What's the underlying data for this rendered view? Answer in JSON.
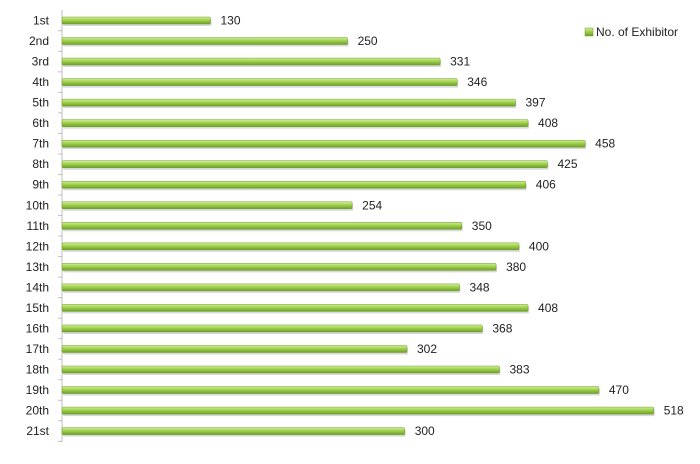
{
  "chart_data": {
    "type": "bar",
    "orientation": "horizontal",
    "categories": [
      "1st",
      "2nd",
      "3rd",
      "4th",
      "5th",
      "6th",
      "7th",
      "8th",
      "9th",
      "10th",
      "11th",
      "12th",
      "13th",
      "14th",
      "15th",
      "16th",
      "17th",
      "18th",
      "19th",
      "20th",
      "21st"
    ],
    "series": [
      {
        "name": "No. of Exhibitor",
        "values": [
          130,
          250,
          331,
          346,
          397,
          408,
          458,
          425,
          406,
          254,
          350,
          400,
          380,
          348,
          408,
          368,
          302,
          383,
          470,
          518,
          300
        ],
        "color": "#8cc63f"
      }
    ],
    "xlim": [
      0,
      520
    ],
    "grid": false,
    "legend_position": "top-right"
  }
}
